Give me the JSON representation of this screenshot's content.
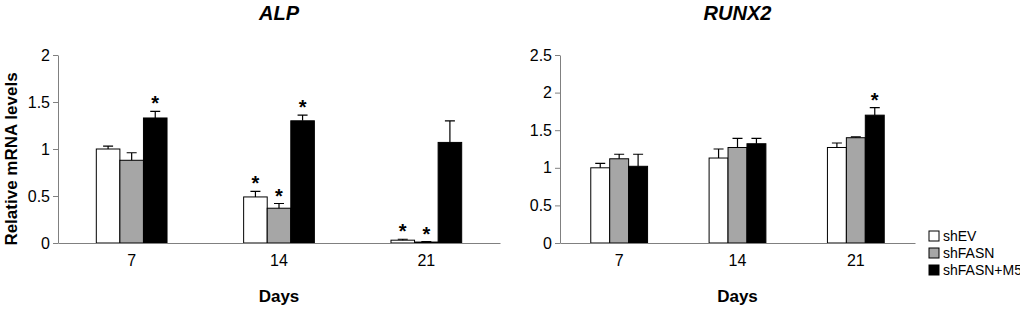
{
  "chart_data": [
    {
      "type": "bar",
      "title": "ALP",
      "y_label": "Relative mRNA levels",
      "x_label": "Days",
      "categories": [
        "7",
        "14",
        "21"
      ],
      "ylim": [
        0,
        2
      ],
      "yticks": [
        0,
        0.5,
        1,
        1.5,
        2
      ],
      "series": [
        {
          "color": "#ffffff",
          "values": [
            1.0,
            0.49,
            0.03
          ],
          "errors": [
            0.03,
            0.06,
            0.01
          ]
        },
        {
          "color": "#a6a6a6",
          "values": [
            0.88,
            0.37,
            0.01
          ],
          "errors": [
            0.08,
            0.05,
            0.005
          ]
        },
        {
          "color": "#000000",
          "values": [
            1.33,
            1.3,
            1.07
          ],
          "errors": [
            0.07,
            0.06,
            0.23
          ]
        }
      ],
      "annotations": [
        {
          "text": "*",
          "category": "7",
          "series": 2
        },
        {
          "text": "*",
          "category": "14",
          "series": 0
        },
        {
          "text": "*",
          "category": "14",
          "series": 1
        },
        {
          "text": "*",
          "category": "14",
          "series": 2
        },
        {
          "text": "*",
          "category": "21",
          "series": 0
        },
        {
          "text": "*",
          "category": "21",
          "series": 1
        }
      ]
    },
    {
      "type": "bar",
      "title": "RUNX2",
      "x_label": "Days",
      "categories": [
        "7",
        "14",
        "21"
      ],
      "ylim": [
        0,
        2.5
      ],
      "yticks": [
        0,
        0.5,
        1,
        1.5,
        2,
        2.5
      ],
      "legend": "right",
      "series": [
        {
          "name": "shEV",
          "color": "#ffffff",
          "values": [
            1.0,
            1.13,
            1.27
          ],
          "errors": [
            0.06,
            0.12,
            0.06
          ]
        },
        {
          "name": "shFASN",
          "color": "#a6a6a6",
          "values": [
            1.12,
            1.27,
            1.4
          ],
          "errors": [
            0.06,
            0.12,
            0.01
          ]
        },
        {
          "name": "shFASN+M5",
          "color": "#000000",
          "values": [
            1.02,
            1.32,
            1.7
          ],
          "errors": [
            0.16,
            0.07,
            0.1
          ]
        }
      ],
      "annotations": [
        {
          "text": "*",
          "category": "21",
          "series": 2
        }
      ]
    }
  ]
}
